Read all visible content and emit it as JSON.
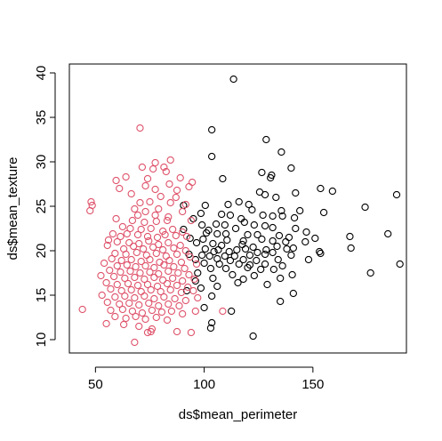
{
  "chart_data": {
    "type": "scatter",
    "title": "",
    "xlabel": "ds$mean_perimeter",
    "ylabel": "ds$mean_texture",
    "xlim": [
      38,
      193
    ],
    "ylim": [
      8.5,
      41
    ],
    "x_ticks": [
      50,
      100,
      150
    ],
    "y_ticks": [
      10,
      15,
      20,
      25,
      30,
      35,
      40
    ],
    "grid": false,
    "legend": "none",
    "marker": "open-circle",
    "colors": {
      "black_series": "#000000",
      "red_series": "#DF536B"
    },
    "series": [
      {
        "color": "#000000",
        "points": [
          [
            113.5,
            39.3
          ],
          [
            103.5,
            33.6
          ],
          [
            128.5,
            32.5
          ],
          [
            135.5,
            31.1
          ],
          [
            103.5,
            30.6
          ],
          [
            140,
            29.3
          ],
          [
            126.5,
            28.8
          ],
          [
            131,
            28.5
          ],
          [
            108.5,
            28.1
          ],
          [
            130.5,
            28.2
          ],
          [
            153.5,
            27
          ],
          [
            159,
            26.7
          ],
          [
            188.5,
            26.3
          ],
          [
            142,
            26.5
          ],
          [
            125.5,
            26.6
          ],
          [
            128,
            26.3
          ],
          [
            133,
            26
          ],
          [
            116,
            25.5
          ],
          [
            120.5,
            25.2
          ],
          [
            111,
            25.2
          ],
          [
            90.5,
            25.1
          ],
          [
            100.5,
            25.1
          ],
          [
            174,
            24.9
          ],
          [
            122,
            24.6
          ],
          [
            135.5,
            24.5
          ],
          [
            144,
            24.5
          ],
          [
            108,
            24.1
          ],
          [
            155,
            24.3
          ],
          [
            98.5,
            24.2
          ],
          [
            112,
            24
          ],
          [
            127,
            24
          ],
          [
            136,
            23.9
          ],
          [
            117,
            23.6
          ],
          [
            131.5,
            23.9
          ],
          [
            95,
            23.6
          ],
          [
            141.5,
            23.7
          ],
          [
            118.5,
            23.2
          ],
          [
            105.5,
            23
          ],
          [
            109.5,
            22.9
          ],
          [
            123,
            22.9
          ],
          [
            99,
            22.9
          ],
          [
            128,
            22.8
          ],
          [
            102,
            22.3
          ],
          [
            114.5,
            22.5
          ],
          [
            131.5,
            22.6
          ],
          [
            142,
            22.5
          ],
          [
            147,
            22.1
          ],
          [
            90.5,
            22.4
          ],
          [
            101,
            22
          ],
          [
            106,
            21.9
          ],
          [
            110,
            21.9
          ],
          [
            120,
            21.8
          ],
          [
            124.5,
            21.8
          ],
          [
            134.5,
            21.7
          ],
          [
            139,
            21.5
          ],
          [
            151,
            21.4
          ],
          [
            167,
            21.6
          ],
          [
            184.5,
            21.9
          ],
          [
            93.5,
            21.4
          ],
          [
            99.5,
            21.3
          ],
          [
            110.5,
            21.2
          ],
          [
            118,
            21.1
          ],
          [
            126.5,
            21.3
          ],
          [
            131.5,
            21.1
          ],
          [
            137.5,
            21
          ],
          [
            146.5,
            21
          ],
          [
            96.5,
            20.9
          ],
          [
            104,
            20.8
          ],
          [
            108,
            20.6
          ],
          [
            117.5,
            20.7
          ],
          [
            122.5,
            20.4
          ],
          [
            133.5,
            20.5
          ],
          [
            141,
            20.3
          ],
          [
            167.5,
            20.3
          ],
          [
            100.5,
            20.2
          ],
          [
            106.5,
            20.1
          ],
          [
            115,
            20.1
          ],
          [
            119,
            20.2
          ],
          [
            128.5,
            20.1
          ],
          [
            138,
            20.2
          ],
          [
            104.5,
            19.9
          ],
          [
            111.5,
            19.9
          ],
          [
            124.5,
            19.8
          ],
          [
            131.5,
            19.8
          ],
          [
            153,
            19.9
          ],
          [
            93,
            19.6
          ],
          [
            99,
            19.5
          ],
          [
            102.5,
            19.4
          ],
          [
            109.5,
            19.4
          ],
          [
            114,
            19.4
          ],
          [
            121,
            19.5
          ],
          [
            128,
            19.6
          ],
          [
            140,
            19.5
          ],
          [
            153.5,
            19.7
          ],
          [
            96,
            19
          ],
          [
            106,
            19.1
          ],
          [
            112,
            18.9
          ],
          [
            118,
            19
          ],
          [
            124,
            18.9
          ],
          [
            134,
            19
          ],
          [
            148,
            19
          ],
          [
            100,
            18.6
          ],
          [
            107,
            18.5
          ],
          [
            116,
            18.5
          ],
          [
            121,
            18.4
          ],
          [
            128,
            18.5
          ],
          [
            136,
            18.3
          ],
          [
            190,
            18.5
          ],
          [
            103,
            18
          ],
          [
            110,
            18
          ],
          [
            120,
            18.1
          ],
          [
            126,
            17.9
          ],
          [
            132,
            17.9
          ],
          [
            97,
            17.5
          ],
          [
            113,
            17.3
          ],
          [
            123,
            17.2
          ],
          [
            140.5,
            17.3
          ],
          [
            176.5,
            17.5
          ],
          [
            104,
            16.9
          ],
          [
            118,
            16.8
          ],
          [
            135,
            16.9
          ],
          [
            96,
            16.6
          ],
          [
            115.5,
            16.4
          ],
          [
            129,
            16.2
          ],
          [
            106,
            16
          ],
          [
            92,
            15.5
          ],
          [
            98.5,
            15.8
          ],
          [
            141,
            15.2
          ],
          [
            103.5,
            14.9
          ],
          [
            135,
            14.3
          ],
          [
            100,
            13.6
          ],
          [
            112.5,
            13.2
          ],
          [
            103.5,
            11.9
          ],
          [
            103,
            11.3
          ],
          [
            122.5,
            10.4
          ]
        ]
      },
      {
        "color": "#DF536B",
        "points": [
          [
            70.5,
            33.8
          ],
          [
            84.5,
            30.2
          ],
          [
            77.5,
            29.9
          ],
          [
            71.5,
            29.4
          ],
          [
            76.5,
            29.2
          ],
          [
            81.5,
            29.4
          ],
          [
            82.5,
            28.9
          ],
          [
            64,
            28.3
          ],
          [
            59.5,
            27.9
          ],
          [
            74,
            28.1
          ],
          [
            84,
            27.5
          ],
          [
            89,
            28.2
          ],
          [
            94.5,
            27.7
          ],
          [
            61,
            27
          ],
          [
            73,
            27.3
          ],
          [
            77.5,
            26.9
          ],
          [
            87.5,
            26.8
          ],
          [
            93,
            27.2
          ],
          [
            66.5,
            26.4
          ],
          [
            80,
            26.1
          ],
          [
            87,
            26
          ],
          [
            48,
            25.5
          ],
          [
            48.5,
            25.1
          ],
          [
            70.5,
            25.4
          ],
          [
            75,
            25.5
          ],
          [
            84.5,
            25.4
          ],
          [
            91.5,
            25.2
          ],
          [
            47.5,
            24.5
          ],
          [
            68,
            24.7
          ],
          [
            73,
            24.4
          ],
          [
            79,
            24.7
          ],
          [
            90,
            24.4
          ],
          [
            69.5,
            24
          ],
          [
            77.5,
            24
          ],
          [
            83.5,
            23.8
          ],
          [
            59.5,
            23.6
          ],
          [
            67,
            23.4
          ],
          [
            72.5,
            23.2
          ],
          [
            78,
            23.3
          ],
          [
            83,
            23.4
          ],
          [
            94,
            23.4
          ],
          [
            62.5,
            22.7
          ],
          [
            66,
            22.5
          ],
          [
            71,
            22.4
          ],
          [
            75.5,
            22.5
          ],
          [
            81,
            22.2
          ],
          [
            85.5,
            22.4
          ],
          [
            90,
            22.1
          ],
          [
            58,
            21.9
          ],
          [
            61.5,
            21.6
          ],
          [
            64.5,
            21.9
          ],
          [
            69.5,
            21.8
          ],
          [
            74,
            21.6
          ],
          [
            78.5,
            21.5
          ],
          [
            82,
            21.8
          ],
          [
            87,
            21.7
          ],
          [
            92,
            21.6
          ],
          [
            56,
            21.2
          ],
          [
            60,
            21
          ],
          [
            65.5,
            20.9
          ],
          [
            70,
            20.8
          ],
          [
            74.5,
            21.1
          ],
          [
            79,
            20.7
          ],
          [
            83.5,
            20.9
          ],
          [
            89,
            20.6
          ],
          [
            55.5,
            20.6
          ],
          [
            63,
            20.2
          ],
          [
            67.5,
            20.5
          ],
          [
            72,
            20.2
          ],
          [
            76.5,
            20.4
          ],
          [
            81,
            20.1
          ],
          [
            86,
            20.3
          ],
          [
            91.5,
            20
          ],
          [
            59,
            19.7
          ],
          [
            64,
            19.6
          ],
          [
            69,
            19.8
          ],
          [
            73.5,
            19.5
          ],
          [
            78,
            19.7
          ],
          [
            82.5,
            19.4
          ],
          [
            87.5,
            19.6
          ],
          [
            93.5,
            19.3
          ],
          [
            57.5,
            19.1
          ],
          [
            62,
            18.9
          ],
          [
            66.5,
            19
          ],
          [
            71,
            18.8
          ],
          [
            75,
            19
          ],
          [
            79.5,
            18.7
          ],
          [
            84,
            18.9
          ],
          [
            89.5,
            18.7
          ],
          [
            54,
            18.6
          ],
          [
            60,
            18.3
          ],
          [
            64.5,
            18.4
          ],
          [
            68.5,
            18.2
          ],
          [
            73,
            18.3
          ],
          [
            77,
            18.1
          ],
          [
            81.5,
            18.4
          ],
          [
            86,
            18.2
          ],
          [
            91,
            18
          ],
          [
            96.5,
            18.5
          ],
          [
            56.5,
            17.8
          ],
          [
            61.5,
            17.6
          ],
          [
            66,
            17.7
          ],
          [
            70.5,
            17.5
          ],
          [
            75,
            17.6
          ],
          [
            79,
            17.4
          ],
          [
            83.5,
            17.7
          ],
          [
            88,
            17.5
          ],
          [
            93,
            17.3
          ],
          [
            52.5,
            17.2
          ],
          [
            58.5,
            17.1
          ],
          [
            63.5,
            16.9
          ],
          [
            68,
            17
          ],
          [
            72.5,
            16.8
          ],
          [
            77,
            17
          ],
          [
            81,
            16.7
          ],
          [
            85.5,
            16.9
          ],
          [
            90,
            16.6
          ],
          [
            95.5,
            16.8
          ],
          [
            55,
            16.4
          ],
          [
            60,
            16.2
          ],
          [
            65,
            16.3
          ],
          [
            69.5,
            16.1
          ],
          [
            74,
            16.2
          ],
          [
            78.5,
            16
          ],
          [
            83,
            16.3
          ],
          [
            87.5,
            16.1
          ],
          [
            92.5,
            15.9
          ],
          [
            57,
            15.7
          ],
          [
            62,
            15.5
          ],
          [
            66.5,
            15.6
          ],
          [
            71,
            15.4
          ],
          [
            75.5,
            15.6
          ],
          [
            80,
            15.4
          ],
          [
            84.5,
            15.6
          ],
          [
            89.5,
            15.3
          ],
          [
            95,
            15.5
          ],
          [
            53,
            15
          ],
          [
            59,
            14.8
          ],
          [
            63.5,
            14.9
          ],
          [
            68,
            14.7
          ],
          [
            72.5,
            14.9
          ],
          [
            77,
            14.6
          ],
          [
            81.5,
            14.8
          ],
          [
            86.5,
            14.6
          ],
          [
            91.5,
            14.4
          ],
          [
            97,
            14.7
          ],
          [
            55.5,
            14.2
          ],
          [
            61,
            14
          ],
          [
            65.5,
            14.1
          ],
          [
            70,
            13.9
          ],
          [
            74.5,
            14.1
          ],
          [
            79,
            13.8
          ],
          [
            83.5,
            14
          ],
          [
            88.5,
            13.8
          ],
          [
            44,
            13.4
          ],
          [
            57,
            13.3
          ],
          [
            62.5,
            13.4
          ],
          [
            67,
            13.2
          ],
          [
            71.5,
            13
          ],
          [
            76,
            13.3
          ],
          [
            80.5,
            13.1
          ],
          [
            85,
            13.2
          ],
          [
            90,
            12.9
          ],
          [
            96,
            13.2
          ],
          [
            108.5,
            13.2
          ],
          [
            59,
            12.6
          ],
          [
            64,
            12.4
          ],
          [
            68.5,
            12.6
          ],
          [
            73,
            12.3
          ],
          [
            78,
            12.5
          ],
          [
            83,
            12.2
          ],
          [
            55,
            11.8
          ],
          [
            63,
            11.7
          ],
          [
            70,
            11.5
          ],
          [
            76,
            11.2
          ],
          [
            74,
            10.8
          ],
          [
            75.5,
            10.9
          ],
          [
            87.5,
            10.9
          ],
          [
            94,
            10.8
          ],
          [
            68,
            9.7
          ]
        ]
      }
    ]
  }
}
